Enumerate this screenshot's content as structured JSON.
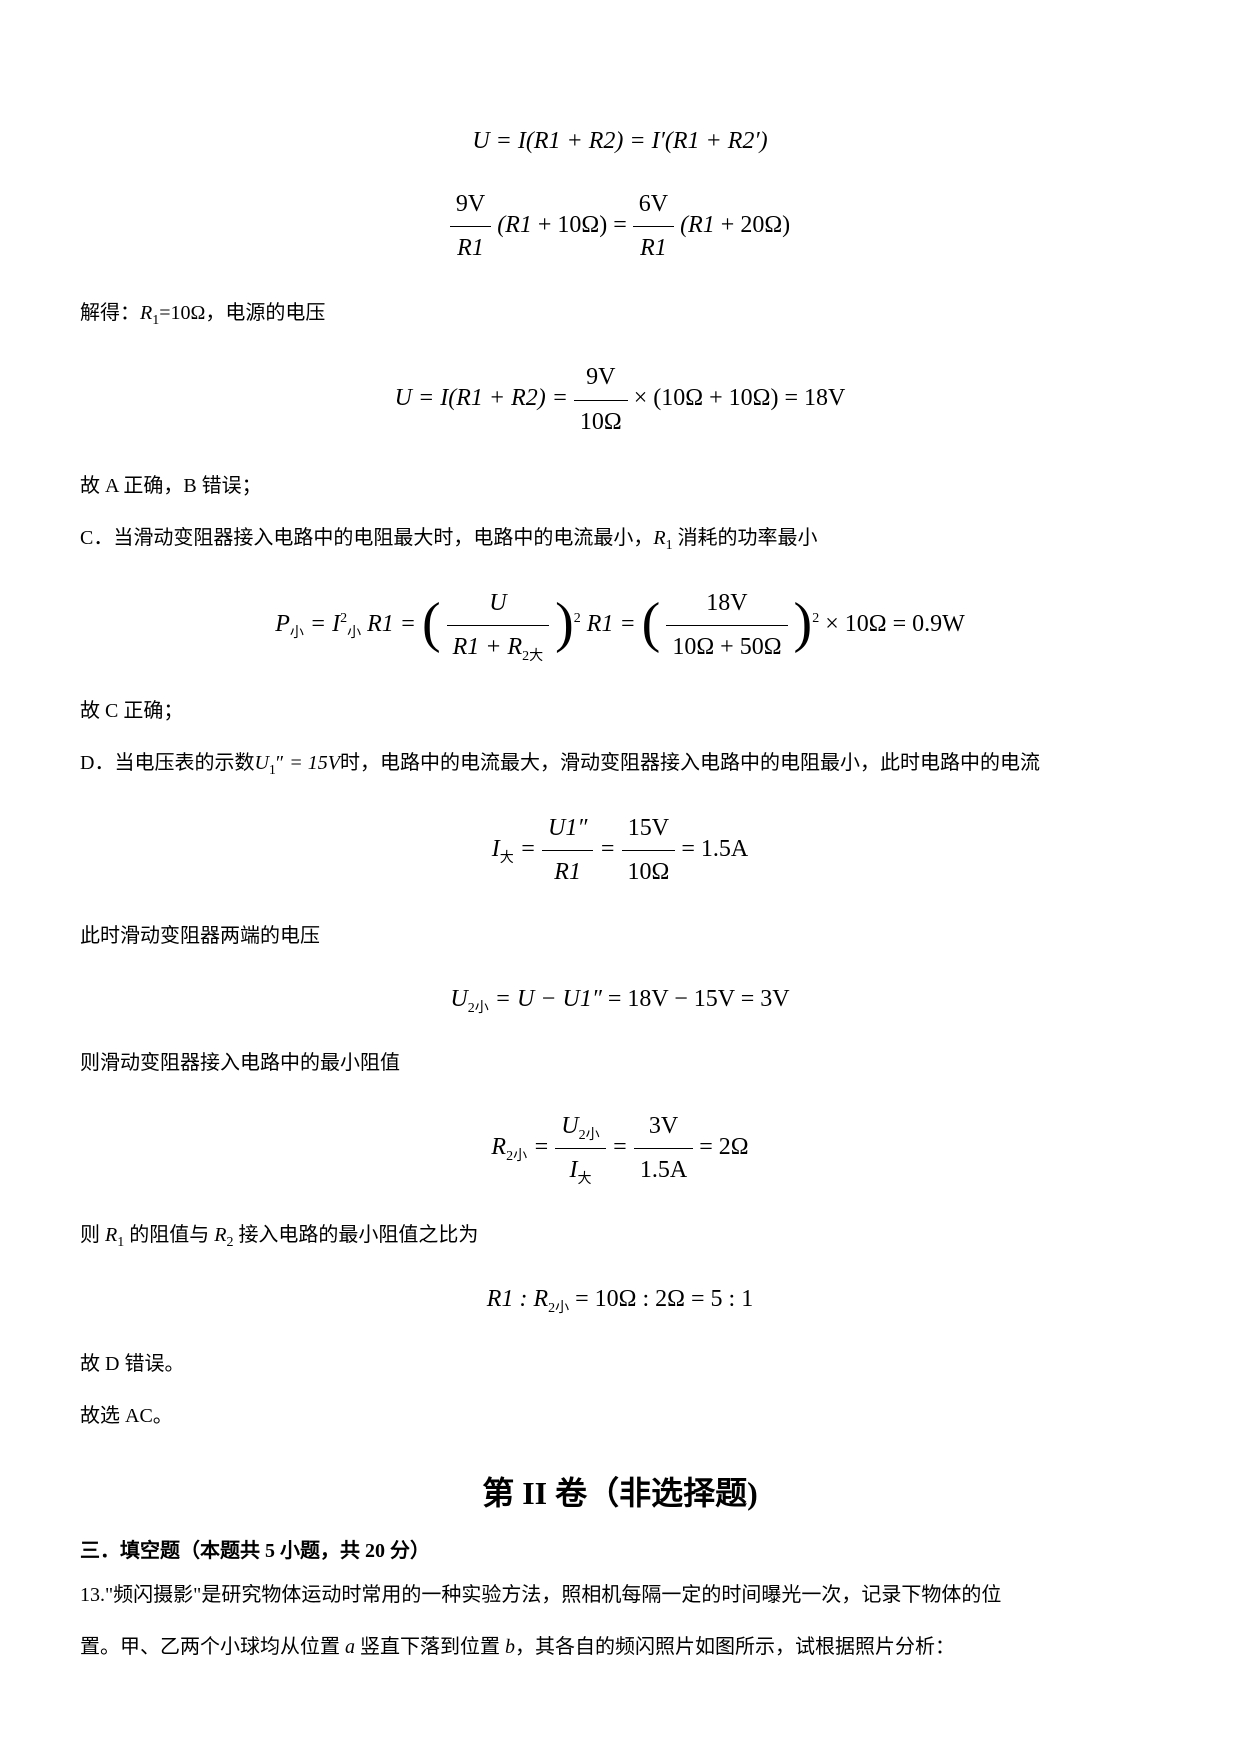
{
  "eq1": {
    "lhs": "U = I(R₁ + R₂) = I′(R₁ + R₂′)"
  },
  "eq2": {
    "frac1_num": "9V",
    "frac1_den": "R",
    "frac1_den_sub": "1",
    "mid1": "(R",
    "mid1_sub": "1",
    "mid1b": " + 10Ω) = ",
    "frac2_num": "6V",
    "frac2_den": "R",
    "frac2_den_sub": "1",
    "mid2": "(R",
    "mid2_sub": "1",
    "mid2b": " + 20Ω)"
  },
  "line_jiede": "解得：",
  "line_jiede_var": "R",
  "line_jiede_sub": "1",
  "line_jiede_rest": "=10Ω，电源的电压",
  "eq3": {
    "pre": "U = I(R",
    "pre_sub": "1",
    "pre2": " + R",
    "pre2_sub": "2",
    "pre3": ") = ",
    "frac_num": "9V",
    "frac_den": "10Ω",
    "post": " × (10Ω + 10Ω) = 18V"
  },
  "line_ab": "故 A 正确，B 错误；",
  "line_c_pre": "C．当滑动变阻器接入电路中的电阻最大时，电路中的电流最小，",
  "line_c_var": "R",
  "line_c_sub": "1",
  "line_c_post": " 消耗的功率最小",
  "eq4": {
    "p": "P",
    "p_sub": "小",
    "eq": " = I",
    "i_sub": "小",
    "i_sup": "2",
    "r": "R",
    "r_sub": "1",
    "eq2": " = ",
    "frac1_num": "U",
    "frac1_den_a": "R",
    "frac1_den_a_sub": "1",
    "frac1_den_mid": " + R",
    "frac1_den_b_sub": "2大",
    "sup1": "2",
    "r2": " R",
    "r2_sub": "1",
    "eq3": " = ",
    "frac2_num": "18V",
    "frac2_den": "10Ω + 50Ω",
    "sup2": "2",
    "post": " × 10Ω = 0.9W"
  },
  "line_c_ok": "故 C 正确；",
  "line_d_pre": "D．当电压表的示数",
  "line_d_var": "U",
  "line_d_sub": "1",
  "line_d_prime": "″",
  "line_d_eq": " = 15V",
  "line_d_post": "时，电路中的电流最大，滑动变阻器接入电路中的电阻最小，此时电路中的电流",
  "eq5": {
    "i": "I",
    "i_sub": "大",
    "eq": " = ",
    "frac1_num_a": "U",
    "frac1_num_sub": "1",
    "frac1_num_prime": "″",
    "frac1_den": "R",
    "frac1_den_sub": "1",
    "eq2": " = ",
    "frac2_num": "15V",
    "frac2_den": "10Ω",
    "post": " = 1.5A"
  },
  "line_u2": "此时滑动变阻器两端的电压",
  "eq6": {
    "u": "U",
    "u_sub": "2小",
    "eq": " = U − U",
    "u1_sub": "1",
    "u1_prime": "″",
    "post": " = 18V − 15V = 3V"
  },
  "line_rmin": "则滑动变阻器接入电路中的最小阻值",
  "eq7": {
    "r": "R",
    "r_sub": "2小",
    "eq": " = ",
    "frac1_num_a": "U",
    "frac1_num_sub": "2小",
    "frac1_den_a": "I",
    "frac1_den_sub": "大",
    "eq2": " = ",
    "frac2_num": "3V",
    "frac2_den": "1.5A",
    "post": " = 2Ω"
  },
  "line_ratio_pre": "则 ",
  "line_ratio_r1": "R",
  "line_ratio_r1_sub": "1",
  "line_ratio_mid": " 的阻值与 ",
  "line_ratio_r2": "R",
  "line_ratio_r2_sub": "2",
  "line_ratio_post": " 接入电路的最小阻值之比为",
  "eq8": {
    "r1": "R",
    "r1_sub": "1",
    "mid": " : R",
    "r2_sub": "2小",
    "post": " = 10Ω : 2Ω = 5 : 1"
  },
  "line_d_wrong": "故 D 错误。",
  "line_ac": "故选 AC。",
  "section_title": "第 II 卷（非选择题)",
  "subsection": "三．填空题（本题共 5 小题，共 20 分）",
  "q13_a": "13.\"频闪摄影\"是研究物体运动时常用的一种实验方法，照相机每隔一定的时间曝光一次，记录下物体的位",
  "q13_b": "置。甲、乙两个小球均从位置 ",
  "q13_var_a": "a",
  "q13_mid": " 竖直下落到位置 ",
  "q13_var_b": "b",
  "q13_c": "，其各自的频闪照片如图所示，试根据照片分析："
}
